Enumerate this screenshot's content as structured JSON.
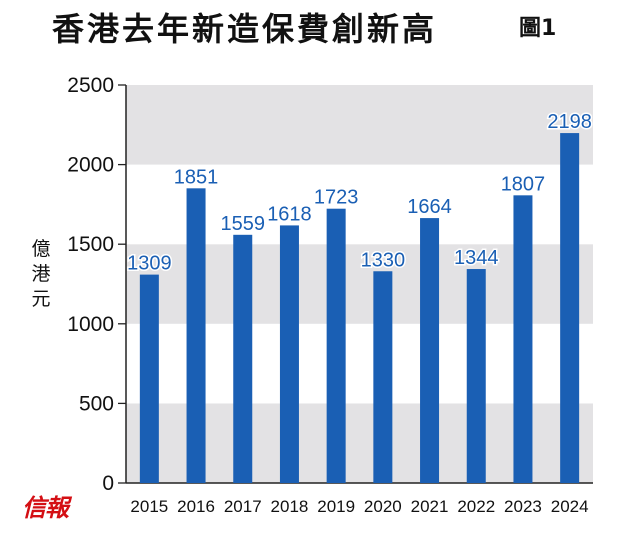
{
  "chart_data": {
    "type": "bar",
    "title": "香港去年新造保費創新高",
    "figure_label": "圖1",
    "ylabel": "億港元",
    "xlabel": "",
    "categories": [
      "2015",
      "2016",
      "2017",
      "2018",
      "2019",
      "2020",
      "2021",
      "2022",
      "2023",
      "2024"
    ],
    "values": [
      1309,
      1851,
      1559,
      1618,
      1723,
      1330,
      1664,
      1344,
      1807,
      2198
    ],
    "ylim": [
      0,
      2500
    ],
    "yticks": [
      0,
      500,
      1000,
      1500,
      2000,
      2500
    ],
    "bar_color": "#1a5fb4",
    "band_color": "#e3e2e4",
    "label_color": "#1a5fb4",
    "grid": false,
    "legend": "none"
  },
  "brand": {
    "logo_text": "信報",
    "logo_color": "#d40f14"
  }
}
